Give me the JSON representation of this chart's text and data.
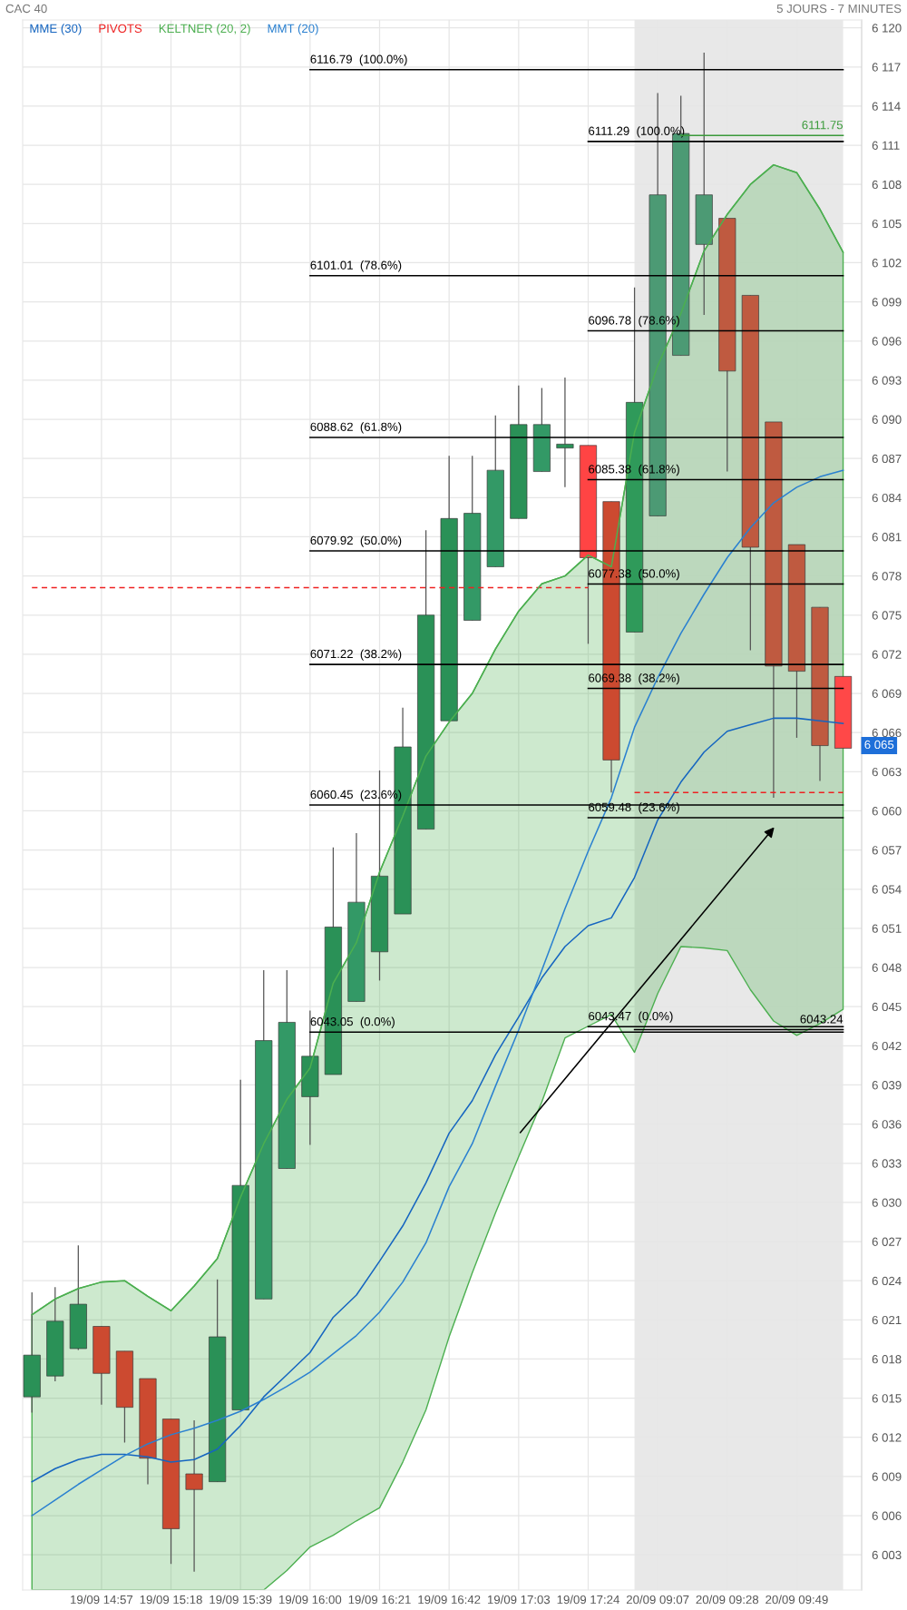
{
  "chart_data": {
    "type": "candlestick",
    "title": "CAC 40",
    "subtitle": "5 JOURS - 7 MINUTES",
    "categories": [
      null,
      null,
      null,
      "19/09 14:57",
      null,
      null,
      "19/09 15:18",
      null,
      null,
      "19/09 15:39",
      null,
      null,
      "19/09 16:00",
      null,
      null,
      "19/09 16:21",
      null,
      null,
      "19/09 16:42",
      null,
      null,
      "19/09 17:03",
      null,
      null,
      "19/09 17:24",
      null,
      null,
      "20/09 09:07",
      null,
      null,
      "20/09 09:28",
      null,
      null,
      "20/09 09:49",
      null,
      null
    ],
    "ohlc": [
      [
        6015.1,
        6023.1,
        6013.9,
        6018.3
      ],
      [
        6016.7,
        6023.5,
        6016.3,
        6020.9
      ],
      [
        6018.8,
        6026.7,
        6018.7,
        6022.2
      ],
      [
        6020.5,
        6020.5,
        6014.5,
        6016.9
      ],
      [
        6018.6,
        6018.6,
        6011.6,
        6014.3
      ],
      [
        6016.5,
        6016.5,
        6008.4,
        6010.4
      ],
      [
        6013.4,
        6013.4,
        6002.3,
        6005.0
      ],
      [
        6009.2,
        6013.3,
        6001.7,
        6008.0
      ],
      [
        6008.6,
        6024.1,
        6008.6,
        6019.7
      ],
      [
        6014.1,
        6039.4,
        6014.1,
        6031.3
      ],
      [
        6022.6,
        6047.8,
        6022.6,
        6042.4
      ],
      [
        6032.6,
        6047.8,
        6032.6,
        6043.8
      ],
      [
        6038.1,
        6044.7,
        6034.4,
        6041.2
      ],
      [
        6039.8,
        6057.2,
        6039.8,
        6051.1
      ],
      [
        6045.4,
        6058.3,
        6045.4,
        6053.0
      ],
      [
        6049.2,
        6063.1,
        6047.0,
        6055.0
      ],
      [
        6052.1,
        6067.9,
        6052.1,
        6064.9
      ],
      [
        6058.6,
        6081.5,
        6058.6,
        6075.0
      ],
      [
        6066.9,
        6087.2,
        6066.9,
        6082.4
      ],
      [
        6074.6,
        6087.2,
        6074.6,
        6082.8
      ],
      [
        6078.7,
        6090.3,
        6078.7,
        6086.1
      ],
      [
        6082.4,
        6092.6,
        6082.4,
        6089.6
      ],
      [
        6086.0,
        6092.4,
        6086.0,
        6089.6
      ],
      [
        6087.8,
        6093.2,
        6084.8,
        6088.1
      ],
      [
        6088.0,
        6088.0,
        6072.8,
        6079.4
      ],
      [
        6083.7,
        6083.7,
        6061.4,
        6063.9
      ],
      [
        6073.7,
        6100.1,
        6073.7,
        6091.3
      ],
      [
        6082.6,
        6115.0,
        6082.6,
        6107.2
      ],
      [
        6094.9,
        6114.8,
        6094.9,
        6111.9
      ],
      [
        6103.4,
        6118.1,
        6098.0,
        6107.2
      ],
      [
        6105.4,
        6105.4,
        6086.0,
        6093.7
      ],
      [
        6099.5,
        6099.5,
        6072.3,
        6080.2
      ],
      [
        6089.8,
        6089.8,
        6061.0,
        6071.1
      ],
      [
        6080.4,
        6080.4,
        6065.6,
        6070.7
      ],
      [
        6075.6,
        6075.6,
        6062.3,
        6065.0
      ],
      [
        6070.3,
        6070.3,
        6064.8,
        6064.8
      ]
    ],
    "colors": [
      "#2a9157",
      "#2a9157",
      "#2a9157",
      "#cc4a30",
      "#cc4a30",
      "#cc4a30",
      "#cc4a30",
      "#cc4a30",
      "#2a9157",
      "#2a9157",
      "#339966",
      "#339966",
      "#2a9157",
      "#2a9157",
      "#339966",
      "#2a9157",
      "#2a9157",
      "#2a9157",
      "#2a9157",
      "#339966",
      "#339966",
      "#2a9157",
      "#339966",
      "#2a9157",
      "#ff4444",
      "#cc4a30",
      "#2f9a5a",
      "#4c9a74",
      "#4c9a74",
      "#4c9a74",
      "#bf5a40",
      "#bf5a40",
      "#bf5a40",
      "#bf5a40",
      "#bf5a40",
      "#ff4848"
    ],
    "series": [
      {
        "name": "MME (30)",
        "type": "line",
        "color": "#1565c0",
        "values": [
          6008.6,
          6009.6,
          6010.3,
          6010.7,
          6010.7,
          6010.5,
          6010.1,
          6010.3,
          6011.1,
          6012.9,
          6015.1,
          6016.8,
          6018.5,
          6021.2,
          6022.9,
          6025.5,
          6028.2,
          6031.5,
          6035.3,
          6037.8,
          6041.3,
          6044.2,
          6047.2,
          6049.6,
          6051.2,
          6051.8,
          6054.9,
          6059.3,
          6062.2,
          6064.5,
          6066.1,
          6066.6,
          6067.1,
          6067.1,
          6066.9,
          6066.7
        ]
      },
      {
        "name": "PIVOTS",
        "type": "line",
        "color": "#ee2222",
        "line_style": "dashed",
        "values": [
          6077.1,
          6077.1,
          6077.1,
          6077.1,
          6077.1,
          6077.1,
          6077.1,
          6077.1,
          6077.1,
          6077.1,
          6077.1,
          6077.1,
          6077.1,
          6077.1,
          6077.1,
          6077.1,
          6077.1,
          6077.1,
          6077.1,
          6077.1,
          6077.1,
          6077.1,
          6077.1,
          6077.1,
          6077.1,
          null,
          6061.4,
          6061.4,
          6061.4,
          6061.4,
          6061.4,
          6061.4,
          6061.4,
          6061.4,
          6061.4,
          6061.4
        ]
      },
      {
        "name": "KELTNER (20, 2)",
        "type": "line",
        "color": "#4caf50",
        "lower": [
          6000.3,
          6000.3,
          6000.3,
          6000.3,
          6000.3,
          6000.3,
          6000.3,
          6000.3,
          6000.3,
          6000.3,
          6000.3,
          6001.8,
          6003.6,
          6004.5,
          6005.6,
          6006.6,
          6010.1,
          6014.1,
          6019.7,
          6024.6,
          6029.2,
          6033.5,
          6037.7,
          6042.6,
          6043.5,
          6044.4,
          6041.5,
          6046.0,
          6049.6,
          6049.5,
          6049.3,
          6046.3,
          6043.9,
          6042.8,
          6043.7,
          6044.8
        ],
        "values": [
          6021.4,
          6022.6,
          6023.4,
          6023.9,
          6024.0,
          6022.8,
          6021.7,
          6023.6,
          6025.7,
          6030.4,
          6034.5,
          6037.9,
          6040.3,
          6046.8,
          6049.9,
          6055.3,
          6059.6,
          6064.2,
          6066.8,
          6069.0,
          6072.4,
          6075.3,
          6077.4,
          6078.0,
          6079.6,
          6078.7,
          6089.0,
          6094.1,
          6098.1,
          6102.9,
          6105.7,
          6108.0,
          6109.5,
          6108.9,
          6106.1,
          6102.8
        ],
        "upper": [
          6021.4,
          6022.6,
          6023.4,
          6023.9,
          6024.0,
          6022.8,
          6021.7,
          6023.6,
          6025.7,
          6030.4,
          6034.5,
          6037.9,
          6040.3,
          6046.8,
          6049.9,
          6055.3,
          6059.6,
          6064.2,
          6066.8,
          6069.0,
          6072.4,
          6075.3,
          6077.4,
          6078.0,
          6079.6,
          6078.7,
          6089.0,
          6094.1,
          6098.1,
          6102.9,
          6105.7,
          6108.0,
          6109.5,
          6108.9,
          6106.1,
          6102.8
        ]
      },
      {
        "name": "MMT (20)",
        "type": "line",
        "color": "#2a80d0",
        "values": [
          6006.0,
          6007.2,
          6008.4,
          6009.5,
          6010.6,
          6011.5,
          6012.2,
          6012.7,
          6013.3,
          6014.0,
          6014.9,
          6015.9,
          6017.0,
          6018.4,
          6019.8,
          6021.6,
          6023.9,
          6026.9,
          6031.2,
          6034.5,
          6038.9,
          6043.2,
          6047.8,
          6052.5,
          6056.9,
          6061.0,
          6066.4,
          6070.2,
          6073.6,
          6076.6,
          6079.4,
          6081.7,
          6083.6,
          6084.8,
          6085.6,
          6086.1
        ]
      },
      {
        "name": "6116.79  (100.0%)",
        "type": "line",
        "color": "#000000",
        "values": [
          null,
          null,
          null,
          null,
          null,
          null,
          null,
          null,
          null,
          null,
          null,
          null,
          6116.79,
          6116.79,
          6116.79,
          6116.79,
          6116.79,
          6116.79,
          6116.79,
          6116.79,
          6116.79,
          6116.79,
          6116.79,
          6116.79,
          6116.79,
          6116.79,
          6116.79,
          6116.79,
          6116.79,
          6116.79,
          6116.79,
          6116.79,
          6116.79,
          6116.79,
          6116.79,
          6116.79
        ]
      },
      {
        "name": "6101.01  (78.6%)",
        "type": "line",
        "color": "#000000",
        "values": [
          null,
          null,
          null,
          null,
          null,
          null,
          null,
          null,
          null,
          null,
          null,
          null,
          6101.01,
          6101.01,
          6101.01,
          6101.01,
          6101.01,
          6101.01,
          6101.01,
          6101.01,
          6101.01,
          6101.01,
          6101.01,
          6101.01,
          6101.01,
          6101.01,
          6101.01,
          6101.01,
          6101.01,
          6101.01,
          6101.01,
          6101.01,
          6101.01,
          6101.01,
          6101.01,
          6101.01
        ]
      },
      {
        "name": "6088.62  (61.8%)",
        "type": "line",
        "color": "#000000",
        "values": [
          null,
          null,
          null,
          null,
          null,
          null,
          null,
          null,
          null,
          null,
          null,
          null,
          6088.62,
          6088.62,
          6088.62,
          6088.62,
          6088.62,
          6088.62,
          6088.62,
          6088.62,
          6088.62,
          6088.62,
          6088.62,
          6088.62,
          6088.62,
          6088.62,
          6088.62,
          6088.62,
          6088.62,
          6088.62,
          6088.62,
          6088.62,
          6088.62,
          6088.62,
          6088.62,
          6088.62
        ]
      },
      {
        "name": "6079.92  (50.0%)",
        "type": "line",
        "color": "#000000",
        "values": [
          null,
          null,
          null,
          null,
          null,
          null,
          null,
          null,
          null,
          null,
          null,
          null,
          6079.92,
          6079.92,
          6079.92,
          6079.92,
          6079.92,
          6079.92,
          6079.92,
          6079.92,
          6079.92,
          6079.92,
          6079.92,
          6079.92,
          6079.92,
          6079.92,
          6079.92,
          6079.92,
          6079.92,
          6079.92,
          6079.92,
          6079.92,
          6079.92,
          6079.92,
          6079.92,
          6079.92
        ]
      },
      {
        "name": "6071.22  (38.2%)",
        "type": "line",
        "color": "#000000",
        "values": [
          null,
          null,
          null,
          null,
          null,
          null,
          null,
          null,
          null,
          null,
          null,
          null,
          6071.22,
          6071.22,
          6071.22,
          6071.22,
          6071.22,
          6071.22,
          6071.22,
          6071.22,
          6071.22,
          6071.22,
          6071.22,
          6071.22,
          6071.22,
          6071.22,
          6071.22,
          6071.22,
          6071.22,
          6071.22,
          6071.22,
          6071.22,
          6071.22,
          6071.22,
          6071.22,
          6071.22
        ]
      },
      {
        "name": "6060.45  (23.6%)",
        "type": "line",
        "color": "#000000",
        "values": [
          null,
          null,
          null,
          null,
          null,
          null,
          null,
          null,
          null,
          null,
          null,
          null,
          6060.45,
          6060.45,
          6060.45,
          6060.45,
          6060.45,
          6060.45,
          6060.45,
          6060.45,
          6060.45,
          6060.45,
          6060.45,
          6060.45,
          6060.45,
          6060.45,
          6060.45,
          6060.45,
          6060.45,
          6060.45,
          6060.45,
          6060.45,
          6060.45,
          6060.45,
          6060.45,
          6060.45
        ]
      },
      {
        "name": "6043.05  (0.0%)",
        "type": "line",
        "color": "#000000",
        "values": [
          null,
          null,
          null,
          null,
          null,
          null,
          null,
          null,
          null,
          null,
          null,
          null,
          6043.05,
          6043.05,
          6043.05,
          6043.05,
          6043.05,
          6043.05,
          6043.05,
          6043.05,
          6043.05,
          6043.05,
          6043.05,
          6043.05,
          6043.05,
          6043.05,
          6043.05,
          6043.05,
          6043.05,
          6043.05,
          6043.05,
          6043.05,
          6043.05,
          6043.05,
          6043.05,
          6043.05
        ]
      },
      {
        "name": "6111.29  (100.0%)",
        "type": "line",
        "color": "#000000",
        "values": [
          null,
          null,
          null,
          null,
          null,
          null,
          null,
          null,
          null,
          null,
          null,
          null,
          null,
          null,
          null,
          null,
          null,
          null,
          null,
          null,
          null,
          null,
          null,
          null,
          6111.29,
          6111.29,
          6111.29,
          6111.29,
          6111.29,
          6111.29,
          6111.29,
          6111.29,
          6111.29,
          6111.29,
          6111.29,
          6111.29
        ]
      },
      {
        "name": "6096.78  (78.6%)",
        "type": "line",
        "color": "#000000",
        "values": [
          null,
          null,
          null,
          null,
          null,
          null,
          null,
          null,
          null,
          null,
          null,
          null,
          null,
          null,
          null,
          null,
          null,
          null,
          null,
          null,
          null,
          null,
          null,
          null,
          6096.78,
          6096.78,
          6096.78,
          6096.78,
          6096.78,
          6096.78,
          6096.78,
          6096.78,
          6096.78,
          6096.78,
          6096.78,
          6096.78
        ]
      },
      {
        "name": "6085.38  (61.8%)",
        "type": "line",
        "color": "#000000",
        "values": [
          null,
          null,
          null,
          null,
          null,
          null,
          null,
          null,
          null,
          null,
          null,
          null,
          null,
          null,
          null,
          null,
          null,
          null,
          null,
          null,
          null,
          null,
          null,
          null,
          6085.38,
          6085.38,
          6085.38,
          6085.38,
          6085.38,
          6085.38,
          6085.38,
          6085.38,
          6085.38,
          6085.38,
          6085.38,
          6085.38
        ]
      },
      {
        "name": "6077.38  (50.0%)",
        "type": "line",
        "color": "#000000",
        "values": [
          null,
          null,
          null,
          null,
          null,
          null,
          null,
          null,
          null,
          null,
          null,
          null,
          null,
          null,
          null,
          null,
          null,
          null,
          null,
          null,
          null,
          null,
          null,
          null,
          6077.38,
          6077.38,
          6077.38,
          6077.38,
          6077.38,
          6077.38,
          6077.38,
          6077.38,
          6077.38,
          6077.38,
          6077.38,
          6077.38
        ]
      },
      {
        "name": "6069.38  (38.2%)",
        "type": "line",
        "color": "#000000",
        "values": [
          null,
          null,
          null,
          null,
          null,
          null,
          null,
          null,
          null,
          null,
          null,
          null,
          null,
          null,
          null,
          null,
          null,
          null,
          null,
          null,
          null,
          null,
          null,
          null,
          6069.38,
          6069.38,
          6069.38,
          6069.38,
          6069.38,
          6069.38,
          6069.38,
          6069.38,
          6069.38,
          6069.38,
          6069.38,
          6069.38
        ]
      },
      {
        "name": "6059.48  (23.6%)",
        "type": "line",
        "color": "#000000",
        "values": [
          null,
          null,
          null,
          null,
          null,
          null,
          null,
          null,
          null,
          null,
          null,
          null,
          null,
          null,
          null,
          null,
          null,
          null,
          null,
          null,
          null,
          null,
          null,
          null,
          6059.48,
          6059.48,
          6059.48,
          6059.48,
          6059.48,
          6059.48,
          6059.48,
          6059.48,
          6059.48,
          6059.48,
          6059.48,
          6059.48
        ]
      },
      {
        "name": "6043.47  (0.0%)",
        "type": "line",
        "color": "#000000",
        "values": [
          null,
          null,
          null,
          null,
          null,
          null,
          null,
          null,
          null,
          null,
          null,
          null,
          null,
          null,
          null,
          null,
          null,
          null,
          null,
          null,
          null,
          null,
          null,
          null,
          6043.47,
          6043.47,
          6043.47,
          6043.47,
          6043.47,
          6043.47,
          6043.47,
          6043.47,
          6043.47,
          6043.47,
          6043.47,
          6043.47
        ]
      },
      {
        "type": "line",
        "color": "#3a9a3a",
        "values": [
          null,
          null,
          null,
          null,
          null,
          null,
          null,
          null,
          null,
          null,
          null,
          null,
          null,
          null,
          null,
          null,
          null,
          null,
          null,
          null,
          null,
          null,
          null,
          null,
          null,
          null,
          null,
          null,
          6111.75,
          6111.75,
          6111.75,
          6111.75,
          6111.75,
          6111.75,
          6111.75,
          6111.75
        ],
        "value_labels": [
          null,
          null,
          null,
          null,
          null,
          null,
          null,
          null,
          null,
          null,
          null,
          null,
          null,
          null,
          null,
          null,
          null,
          null,
          null,
          null,
          null,
          null,
          null,
          null,
          null,
          null,
          null,
          null,
          null,
          null,
          null,
          null,
          null,
          null,
          null,
          "6111.75"
        ]
      },
      {
        "type": "line",
        "color": "#000000",
        "values": [
          null,
          null,
          null,
          null,
          null,
          null,
          null,
          null,
          null,
          null,
          null,
          null,
          null,
          null,
          null,
          null,
          null,
          null,
          null,
          null,
          null,
          null,
          null,
          null,
          null,
          null,
          6043.24,
          6043.24,
          6043.24,
          6043.24,
          6043.24,
          6043.24,
          6043.24,
          6043.24,
          6043.24,
          6043.24
        ],
        "value_labels": [
          null,
          null,
          null,
          null,
          null,
          null,
          null,
          null,
          null,
          null,
          null,
          null,
          null,
          null,
          null,
          null,
          null,
          null,
          null,
          null,
          null,
          null,
          null,
          null,
          null,
          null,
          null,
          null,
          null,
          null,
          null,
          null,
          null,
          null,
          null,
          "6043.24"
        ]
      }
    ],
    "annotations": [
      {
        "text": "6 065",
        "y": 6065
      }
    ],
    "ylim": [
      6000.3,
      6120.6
    ],
    "yticks": [
      {
        "value": 6003,
        "label": "6 003"
      },
      {
        "value": 6006,
        "label": "6 006"
      },
      {
        "value": 6009,
        "label": "6 009"
      },
      {
        "value": 6012,
        "label": "6 012"
      },
      {
        "value": 6015,
        "label": "6 015"
      },
      {
        "value": 6018,
        "label": "6 018"
      },
      {
        "value": 6021,
        "label": "6 021"
      },
      {
        "value": 6024,
        "label": "6 024"
      },
      {
        "value": 6027,
        "label": "6 027"
      },
      {
        "value": 6030,
        "label": "6 030"
      },
      {
        "value": 6033,
        "label": "6 033"
      },
      {
        "value": 6036,
        "label": "6 036"
      },
      {
        "value": 6039,
        "label": "6 039"
      },
      {
        "value": 6042,
        "label": "6 042"
      },
      {
        "value": 6045,
        "label": "6 045"
      },
      {
        "value": 6048,
        "label": "6 048"
      },
      {
        "value": 6051,
        "label": "6 051"
      },
      {
        "value": 6054,
        "label": "6 054"
      },
      {
        "value": 6057,
        "label": "6 057"
      },
      {
        "value": 6060,
        "label": "6 060"
      },
      {
        "value": 6063,
        "label": "6 063"
      },
      {
        "value": 6066,
        "label": "6 066"
      },
      {
        "value": 6069,
        "label": "6 069"
      },
      {
        "value": 6072,
        "label": "6 072"
      },
      {
        "value": 6075,
        "label": "6 075"
      },
      {
        "value": 6078,
        "label": "6 078"
      },
      {
        "value": 6081,
        "label": "6 081"
      },
      {
        "value": 6084,
        "label": "6 084"
      },
      {
        "value": 6087,
        "label": "6 087"
      },
      {
        "value": 6090,
        "label": "6 090"
      },
      {
        "value": 6093,
        "label": "6 093"
      },
      {
        "value": 6096,
        "label": "6 096"
      },
      {
        "value": 6099,
        "label": "6 099"
      },
      {
        "value": 6102,
        "label": "6 102"
      },
      {
        "value": 6105,
        "label": "6 105"
      },
      {
        "value": 6108,
        "label": "6 108"
      },
      {
        "value": 6111,
        "label": "6 111"
      },
      {
        "value": 6114,
        "label": "6 114"
      },
      {
        "value": 6117,
        "label": "6 117"
      },
      {
        "value": 6120,
        "label": "6 120"
      }
    ],
    "grid": true,
    "legend": "top left"
  }
}
